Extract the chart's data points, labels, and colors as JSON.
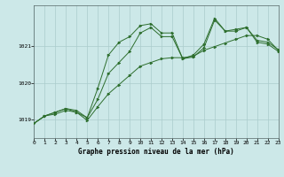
{
  "title": "Graphe pression niveau de la mer (hPa)",
  "background_color": "#cce8e8",
  "grid_color": "#aacccc",
  "line_color": "#2d6e2d",
  "xmin": 0,
  "xmax": 23,
  "ymin": 1018.5,
  "ymax": 1022.1,
  "yticks": [
    1019,
    1020,
    1021
  ],
  "xticks": [
    0,
    1,
    2,
    3,
    4,
    5,
    6,
    7,
    8,
    9,
    10,
    11,
    12,
    13,
    14,
    15,
    16,
    17,
    18,
    19,
    20,
    21,
    22,
    23
  ],
  "series1_x": [
    0,
    1,
    2,
    3,
    4,
    5,
    6,
    7,
    8,
    9,
    10,
    11,
    12,
    13,
    14,
    15,
    16,
    17,
    18,
    19,
    20,
    21,
    22,
    23
  ],
  "series1_y": [
    1018.9,
    1019.1,
    1019.2,
    1019.3,
    1019.25,
    1019.05,
    1019.55,
    1020.25,
    1020.55,
    1020.85,
    1021.35,
    1021.5,
    1021.25,
    1021.25,
    1020.65,
    1020.75,
    1021.05,
    1021.75,
    1021.4,
    1021.45,
    1021.5,
    1021.1,
    1021.05,
    1020.85
  ],
  "series2_x": [
    0,
    1,
    2,
    3,
    4,
    5,
    6,
    7,
    8,
    9,
    10,
    11,
    12,
    13,
    14,
    15,
    16,
    17,
    18,
    19,
    20,
    21,
    22,
    23
  ],
  "series2_y": [
    1018.9,
    1019.1,
    1019.2,
    1019.3,
    1019.2,
    1019.05,
    1019.85,
    1020.75,
    1021.1,
    1021.25,
    1021.55,
    1021.6,
    1021.35,
    1021.35,
    1020.65,
    1020.7,
    1020.95,
    1021.7,
    1021.4,
    1021.4,
    1021.5,
    1021.15,
    1021.1,
    1020.9
  ],
  "series3_x": [
    0,
    1,
    2,
    3,
    4,
    5,
    6,
    7,
    8,
    9,
    10,
    11,
    12,
    13,
    14,
    15,
    16,
    17,
    18,
    19,
    20,
    21,
    22,
    23
  ],
  "series3_y": [
    1018.9,
    1019.1,
    1019.15,
    1019.25,
    1019.2,
    1018.98,
    1019.35,
    1019.7,
    1019.95,
    1020.2,
    1020.45,
    1020.55,
    1020.65,
    1020.68,
    1020.68,
    1020.72,
    1020.88,
    1020.98,
    1021.08,
    1021.18,
    1021.28,
    1021.28,
    1021.18,
    1020.88
  ]
}
